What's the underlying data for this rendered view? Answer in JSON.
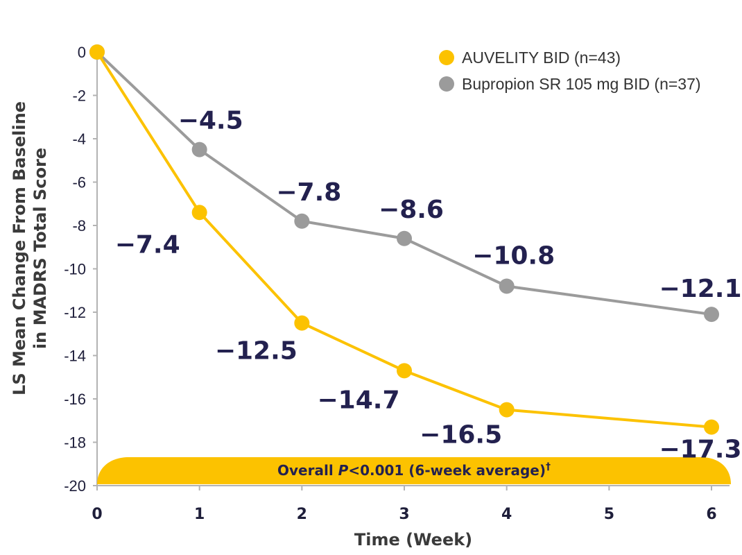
{
  "colors": {
    "auvelity": "#fcc200",
    "bupropion": "#9b9b9b",
    "label": "#23214f",
    "banner": "#fcc200"
  },
  "chart_data": {
    "type": "line",
    "title": "",
    "xlabel": "Time (Week)",
    "ylabel_line1": "LS Mean Change From Baseline",
    "ylabel_line2": "in MADRS Total Score",
    "xlim": [
      0,
      6
    ],
    "ylim": [
      -20,
      0
    ],
    "x_ticks": [
      "0",
      "1",
      "2",
      "3",
      "4",
      "5",
      "6"
    ],
    "y_ticks": [
      "0",
      "-2",
      "-4",
      "-6",
      "-8",
      "-10",
      "-12",
      "-14",
      "-16",
      "-18",
      "-20"
    ],
    "legend_position": "top-right",
    "series": [
      {
        "name": "AUVELITY BID (n=43)",
        "x": [
          0,
          1,
          2,
          3,
          4,
          6
        ],
        "values": [
          0,
          -7.4,
          -12.5,
          -14.7,
          -16.5,
          -17.3
        ],
        "labels": [
          "",
          "−7.4",
          "−12.5",
          "−14.7",
          "−16.5",
          "−17.3"
        ]
      },
      {
        "name": "Bupropion SR 105 mg BID (n=37)",
        "x": [
          0,
          1,
          2,
          3,
          4,
          6
        ],
        "values": [
          0,
          -4.5,
          -7.8,
          -8.6,
          -10.8,
          -12.1
        ],
        "labels": [
          "",
          "−4.5",
          "−7.8",
          "−8.6",
          "−10.8",
          "−12.1"
        ]
      }
    ],
    "banner": {
      "prefix": "Overall ",
      "p": "P",
      "rest": "<0.001 (6-week average)",
      "dagger": "†"
    }
  }
}
